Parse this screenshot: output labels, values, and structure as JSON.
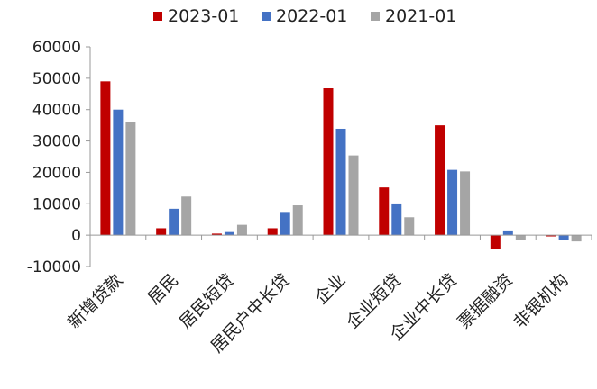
{
  "chart_data": {
    "type": "bar",
    "title": "",
    "xlabel": "",
    "ylabel": "",
    "ylim": [
      -10000,
      60000
    ],
    "yticks": [
      -10000,
      0,
      10000,
      20000,
      30000,
      40000,
      50000,
      60000
    ],
    "ytick_labels": [
      "-10000",
      "0",
      "10000",
      "20000",
      "30000",
      "40000",
      "50000",
      "60000"
    ],
    "legend_position": "top",
    "grid": false,
    "categories": [
      "新增贷款",
      "居民",
      "居民短贷",
      "居民户中长贷",
      "企业",
      "企业短贷",
      "企业中长贷",
      "票据融资",
      "非银机构"
    ],
    "series": [
      {
        "name": "2023-01",
        "color": "#C00000",
        "values": [
          49000,
          2200,
          500,
          2200,
          46800,
          15200,
          35000,
          -4400,
          -400
        ]
      },
      {
        "name": "2022-01",
        "color": "#4472C4",
        "values": [
          40000,
          8400,
          1000,
          7400,
          33900,
          10100,
          20800,
          1500,
          -1500
        ]
      },
      {
        "name": "2021-01",
        "color": "#A5A5A5",
        "values": [
          36000,
          12300,
          3300,
          9500,
          25400,
          5700,
          20300,
          -1400,
          -2000
        ]
      }
    ]
  }
}
